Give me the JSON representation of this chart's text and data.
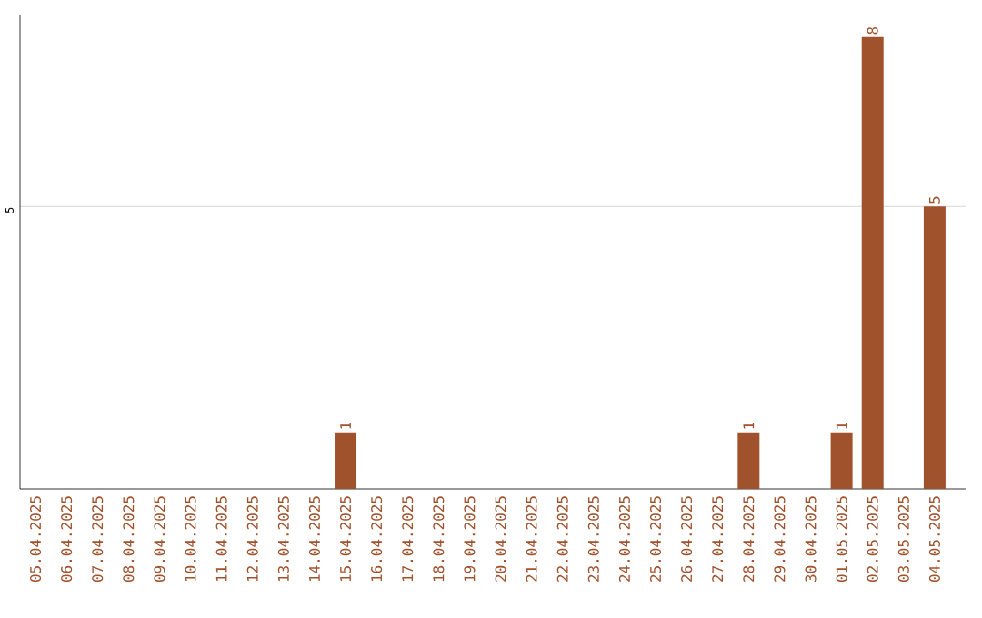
{
  "chart_data": {
    "type": "bar",
    "categories": [
      "05.04.2025",
      "06.04.2025",
      "07.04.2025",
      "08.04.2025",
      "09.04.2025",
      "10.04.2025",
      "11.04.2025",
      "12.04.2025",
      "13.04.2025",
      "14.04.2025",
      "15.04.2025",
      "16.04.2025",
      "17.04.2025",
      "18.04.2025",
      "19.04.2025",
      "20.04.2025",
      "21.04.2025",
      "22.04.2025",
      "23.04.2025",
      "24.04.2025",
      "25.04.2025",
      "26.04.2025",
      "27.04.2025",
      "28.04.2025",
      "29.04.2025",
      "30.04.2025",
      "01.05.2025",
      "02.05.2025",
      "03.05.2025",
      "04.05.2025"
    ],
    "values": [
      0,
      0,
      0,
      0,
      0,
      0,
      0,
      0,
      0,
      0,
      1,
      0,
      0,
      0,
      0,
      0,
      0,
      0,
      0,
      0,
      0,
      0,
      0,
      1,
      0,
      0,
      1,
      8,
      0,
      5
    ],
    "value_labels": [
      null,
      null,
      null,
      null,
      null,
      null,
      null,
      null,
      null,
      null,
      "1",
      null,
      null,
      null,
      null,
      null,
      null,
      null,
      null,
      null,
      null,
      null,
      null,
      "1",
      null,
      null,
      "1",
      "8",
      null,
      "5"
    ],
    "color": "#a0522d",
    "ylim": [
      0,
      8.4
    ],
    "yticks": [
      5
    ],
    "grid": "y"
  }
}
